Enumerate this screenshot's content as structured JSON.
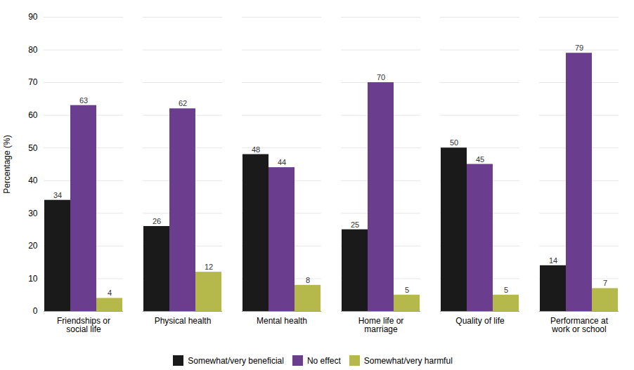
{
  "chart_data": {
    "type": "bar",
    "categories": [
      "Friendships or\nsocial life",
      "Physical health",
      "Mental health",
      "Home life or\nmarriage",
      "Quality of life",
      "Performance at\nwork or school"
    ],
    "series": [
      {
        "name": "Somewhat/very beneficial",
        "color": "#1a1a1a",
        "values": [
          34,
          26,
          48,
          25,
          50,
          14
        ]
      },
      {
        "name": "No effect",
        "color": "#6a3d8f",
        "values": [
          63,
          62,
          44,
          70,
          45,
          79
        ]
      },
      {
        "name": "Somewhat/very harmful",
        "color": "#b5b84a",
        "values": [
          4,
          12,
          8,
          5,
          5,
          7
        ]
      }
    ],
    "ylabel": "Percentage (%)",
    "ylim": [
      0,
      90
    ],
    "yticks": [
      0,
      10,
      20,
      30,
      40,
      50,
      60,
      70,
      80,
      90
    ],
    "grid": true,
    "legend": "bottom",
    "data_labels": true
  }
}
